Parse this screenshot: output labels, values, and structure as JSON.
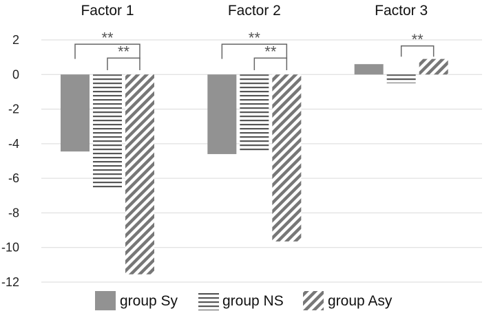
{
  "chart_data": {
    "type": "bar",
    "title": "",
    "xlabel": "",
    "ylabel": "",
    "categories": [
      "Factor 1",
      "Factor 2",
      "Factor 3"
    ],
    "category_position": "top",
    "ylim": [
      -12,
      2
    ],
    "yticks": [
      2,
      0,
      -2,
      -4,
      -6,
      -8,
      -10,
      -12
    ],
    "grid": true,
    "legend_position": "bottom",
    "series": [
      {
        "name": "group Sy",
        "values": [
          -4.45,
          -4.6,
          0.6
        ],
        "fill": "solid",
        "color": "#929292"
      },
      {
        "name": "group NS",
        "values": [
          -6.65,
          -4.45,
          -0.5
        ],
        "fill": "hlines",
        "color": "#555555"
      },
      {
        "name": "group Asy",
        "values": [
          -11.55,
          -9.65,
          0.9
        ],
        "fill": "diagonal",
        "color": "#777777"
      }
    ],
    "annotations": [
      {
        "category": 0,
        "from_series": 0,
        "to_series": 2,
        "text": "**"
      },
      {
        "category": 0,
        "from_series": 1,
        "to_series": 2,
        "text": "**"
      },
      {
        "category": 1,
        "from_series": 0,
        "to_series": 2,
        "text": "**"
      },
      {
        "category": 1,
        "from_series": 1,
        "to_series": 2,
        "text": "**"
      },
      {
        "category": 2,
        "from_series": 1,
        "to_series": 2,
        "text": "**"
      }
    ]
  }
}
